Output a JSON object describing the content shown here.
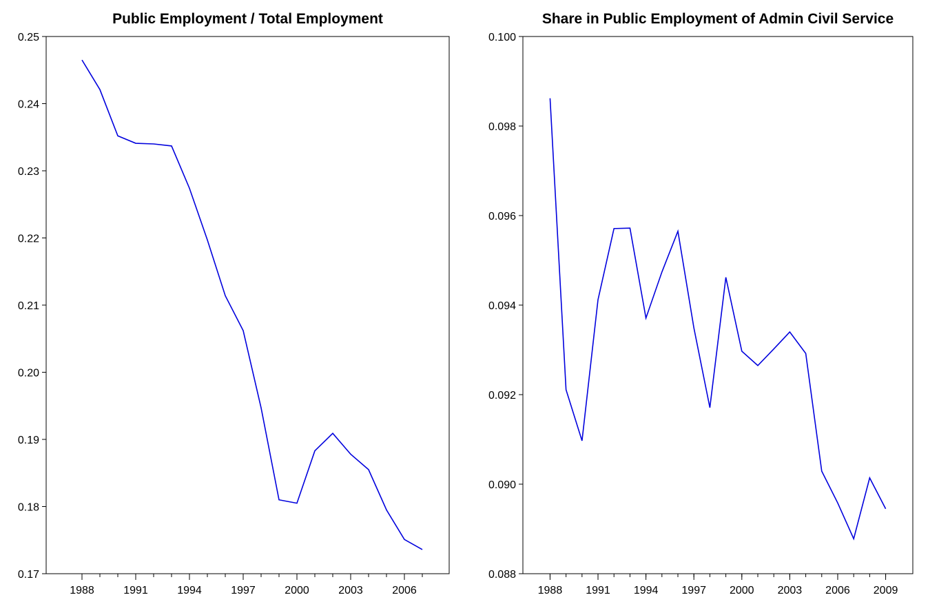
{
  "chart_data": [
    {
      "type": "line",
      "title": "Public Employment / Total Employment",
      "x": [
        1988,
        1989,
        1990,
        1991,
        1992,
        1993,
        1994,
        1995,
        1996,
        1997,
        1998,
        1999,
        2000,
        2001,
        2002,
        2003,
        2004,
        2005,
        2006,
        2007
      ],
      "series": [
        {
          "color": "#0000dd",
          "values": [
            0.2465,
            0.2421,
            0.2352,
            0.2341,
            0.234,
            0.2337,
            0.2274,
            0.2197,
            0.2114,
            0.2062,
            0.1947,
            0.181,
            0.1805,
            0.1883,
            0.1909,
            0.1878,
            0.1855,
            0.1795,
            0.1751,
            0.1736
          ]
        }
      ],
      "xlim": [
        1986,
        2008.5
      ],
      "xticks": [
        1988,
        1991,
        1994,
        1997,
        2000,
        2003,
        2006
      ],
      "ylim": [
        0.17,
        0.25
      ],
      "yticks": [
        0.17,
        0.18,
        0.19,
        {
          "value": 0.2,
          "label": "0.20"
        },
        0.21,
        0.22,
        0.23,
        0.24,
        0.25
      ]
    },
    {
      "type": "line",
      "title": "Share in Public Employment of Admin Civil Service",
      "x": [
        1988,
        1989,
        1990,
        1991,
        1992,
        1993,
        1994,
        1995,
        1996,
        1997,
        1998,
        1999,
        2000,
        2001,
        2002,
        2003,
        2004,
        2005,
        2006,
        2007,
        2008,
        2009
      ],
      "series": [
        {
          "color": "#0000dd",
          "values": [
            0.09862,
            0.09211,
            0.09097,
            0.09412,
            0.09571,
            0.09572,
            0.09371,
            0.09474,
            0.09565,
            0.09349,
            0.09171,
            0.09462,
            0.09297,
            0.09265,
            0.09302,
            0.0934,
            0.09292,
            0.09029,
            0.08958,
            0.08878,
            0.09014,
            0.08945
          ]
        }
      ],
      "xlim": [
        1986.3,
        2010.7
      ],
      "xticks": [
        1988,
        1991,
        1994,
        1997,
        2000,
        2003,
        2006,
        2009
      ],
      "ylim": [
        0.088,
        0.1
      ],
      "yticks": [
        0.088,
        {
          "value": 0.09,
          "label": "0.090"
        },
        0.092,
        0.094,
        0.096,
        0.098,
        {
          "value": 0.1,
          "label": "0.100"
        }
      ]
    }
  ]
}
